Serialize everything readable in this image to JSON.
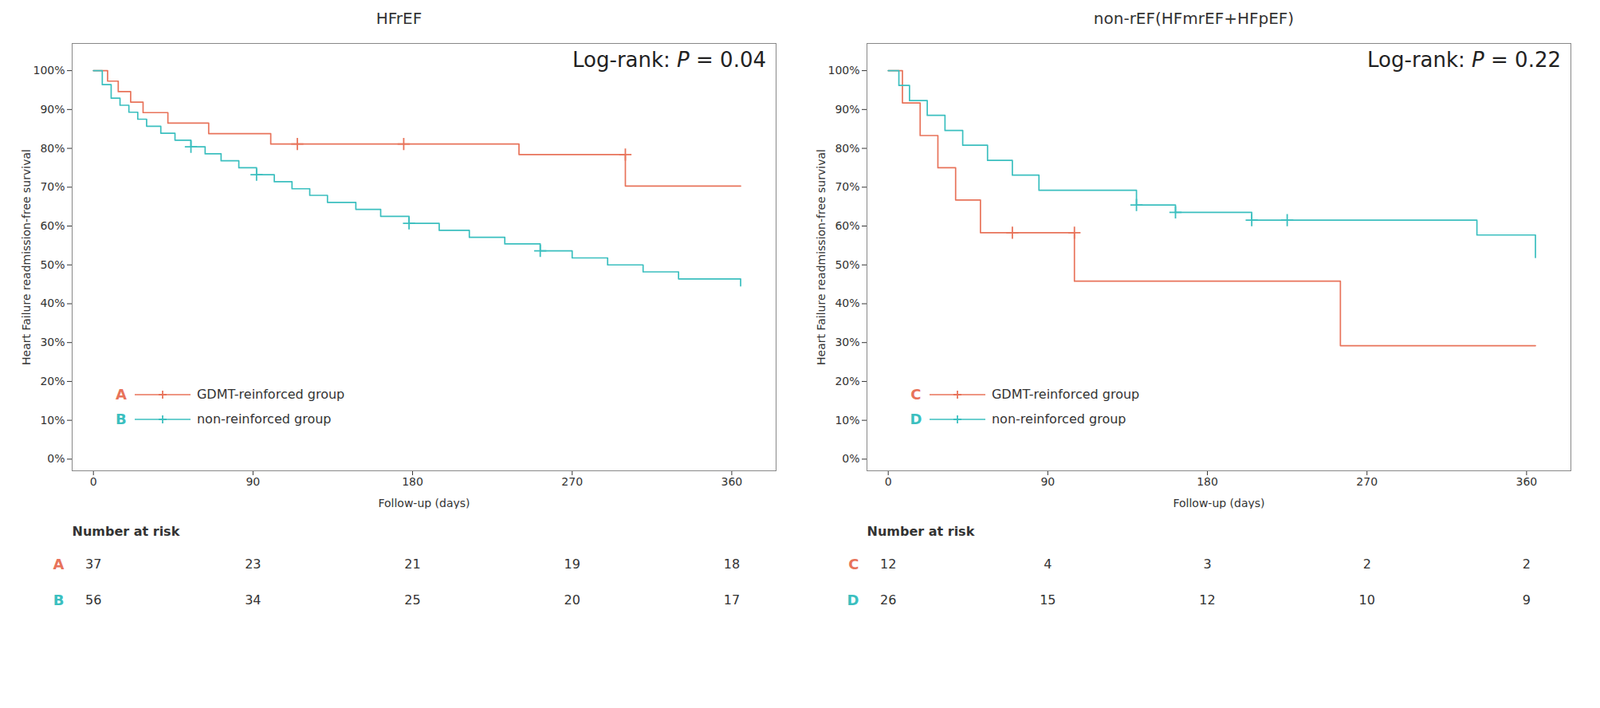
{
  "chart_data": [
    {
      "type": "step",
      "title": "HFrEF",
      "xlabel": "Follow-up (days)",
      "ylabel": "Heart Failure readmission-free survival",
      "xlim": [
        -12,
        385
      ],
      "ylim": [
        -0.03,
        1.07
      ],
      "xticks": [
        0,
        90,
        180,
        270,
        360
      ],
      "yticks": [
        {
          "value": 0.0,
          "label": "0%"
        },
        {
          "value": 0.1,
          "label": "10%"
        },
        {
          "value": 0.2,
          "label": "20%"
        },
        {
          "value": 0.3,
          "label": "30%"
        },
        {
          "value": 0.4,
          "label": "40%"
        },
        {
          "value": 0.5,
          "label": "50%"
        },
        {
          "value": 0.6,
          "label": "60%"
        },
        {
          "value": 0.7,
          "label": "70%"
        },
        {
          "value": 0.8,
          "label": "80%"
        },
        {
          "value": 0.9,
          "label": "90%"
        },
        {
          "value": 1.0,
          "label": "100%"
        }
      ],
      "grid": false,
      "legend": "lower left",
      "annotation": {
        "text": "Log-rank: P = 0.04",
        "italic": "P"
      },
      "risk_label": "Number at risk",
      "risk_times": [
        0,
        90,
        180,
        270,
        360
      ],
      "series": [
        {
          "name": "GDMT-reinforced group",
          "letter": "A",
          "color": "#E8735A",
          "x": [
            0,
            8,
            14,
            21,
            28,
            35,
            42,
            55,
            65,
            75,
            85,
            100,
            115,
            130,
            155,
            175,
            200,
            240,
            270,
            300,
            365
          ],
          "values": [
            1.0,
            0.973,
            0.946,
            0.919,
            0.892,
            0.892,
            0.865,
            0.865,
            0.838,
            0.838,
            0.838,
            0.811,
            0.811,
            0.811,
            0.811,
            0.811,
            0.811,
            0.784,
            0.784,
            0.703,
            0.703
          ],
          "censor_x": [
            115,
            175,
            300
          ],
          "censor_values": [
            0.811,
            0.811,
            0.784
          ],
          "at_risk": [
            37,
            23,
            21,
            19,
            18
          ]
        },
        {
          "name": "non-reinforced group",
          "letter": "B",
          "color": "#3BBFBF",
          "x": [
            0,
            5,
            10,
            15,
            20,
            25,
            30,
            38,
            46,
            55,
            63,
            72,
            82,
            92,
            102,
            112,
            122,
            132,
            148,
            162,
            178,
            195,
            212,
            232,
            252,
            270,
            290,
            310,
            330,
            365
          ],
          "values": [
            1.0,
            0.964,
            0.929,
            0.911,
            0.893,
            0.875,
            0.857,
            0.839,
            0.821,
            0.804,
            0.786,
            0.768,
            0.75,
            0.732,
            0.714,
            0.696,
            0.679,
            0.661,
            0.643,
            0.625,
            0.607,
            0.589,
            0.571,
            0.554,
            0.536,
            0.518,
            0.5,
            0.482,
            0.464,
            0.446
          ],
          "censor_x": [
            55,
            92,
            178,
            252
          ],
          "censor_values": [
            0.804,
            0.732,
            0.607,
            0.536
          ],
          "at_risk": [
            56,
            34,
            25,
            20,
            17
          ]
        }
      ]
    },
    {
      "type": "step",
      "title": "non-rEF(HFmrEF+HFpEF)",
      "xlabel": "Follow-up (days)",
      "ylabel": "Heart Failure readmission-free survival",
      "xlim": [
        -12,
        385
      ],
      "ylim": [
        -0.03,
        1.07
      ],
      "xticks": [
        0,
        90,
        180,
        270,
        360
      ],
      "yticks": [
        {
          "value": 0.0,
          "label": "0%"
        },
        {
          "value": 0.1,
          "label": "10%"
        },
        {
          "value": 0.2,
          "label": "20%"
        },
        {
          "value": 0.3,
          "label": "30%"
        },
        {
          "value": 0.4,
          "label": "40%"
        },
        {
          "value": 0.5,
          "label": "50%"
        },
        {
          "value": 0.6,
          "label": "60%"
        },
        {
          "value": 0.7,
          "label": "70%"
        },
        {
          "value": 0.8,
          "label": "80%"
        },
        {
          "value": 0.9,
          "label": "90%"
        },
        {
          "value": 1.0,
          "label": "100%"
        }
      ],
      "grid": false,
      "legend": "lower left",
      "annotation": {
        "text": "Log-rank: P = 0.22",
        "italic": "P"
      },
      "risk_label": "Number at risk",
      "risk_times": [
        0,
        90,
        180,
        270,
        360
      ],
      "series": [
        {
          "name": "GDMT-reinforced group",
          "letter": "C",
          "color": "#E8735A",
          "x": [
            0,
            8,
            18,
            28,
            38,
            52,
            70,
            92,
            105,
            180,
            255,
            365
          ],
          "values": [
            1.0,
            0.917,
            0.833,
            0.75,
            0.667,
            0.583,
            0.583,
            0.583,
            0.458,
            0.458,
            0.292,
            0.292
          ],
          "censor_x": [
            70,
            105
          ],
          "censor_values": [
            0.583,
            0.583
          ],
          "at_risk": [
            12,
            4,
            3,
            2,
            2
          ]
        },
        {
          "name": "non-reinforced group",
          "letter": "D",
          "color": "#3BBFBF",
          "x": [
            0,
            6,
            12,
            22,
            32,
            42,
            56,
            70,
            85,
            140,
            162,
            185,
            205,
            225,
            262,
            332,
            365
          ],
          "values": [
            1.0,
            0.962,
            0.923,
            0.885,
            0.846,
            0.808,
            0.769,
            0.731,
            0.692,
            0.654,
            0.635,
            0.635,
            0.615,
            0.615,
            0.615,
            0.577,
            0.519
          ],
          "censor_x": [
            140,
            162,
            205,
            225
          ],
          "censor_values": [
            0.654,
            0.635,
            0.615,
            0.615
          ],
          "at_risk": [
            26,
            15,
            12,
            10,
            9
          ]
        }
      ]
    }
  ]
}
